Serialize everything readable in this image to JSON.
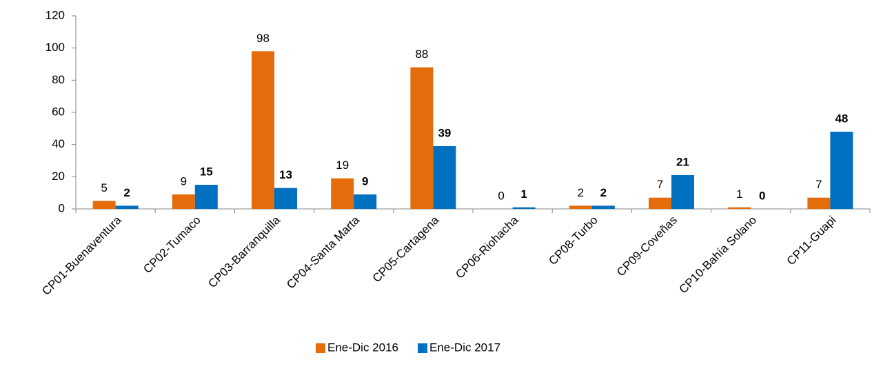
{
  "chart_data": {
    "type": "bar",
    "categories": [
      "CP01-Buenaventura",
      "CP02-Tumaco",
      "CP03-Barranquilla",
      "CP04-Santa Marta",
      "CP05-Cartagena",
      "CP06-Riohacha",
      "CP08-Turbo",
      "CP09-Coveñas",
      "CP10-Bahía Solano",
      "CP11-Guapi"
    ],
    "series": [
      {
        "name": "Ene-Dic 2016",
        "color": "#e46c0a",
        "values": [
          5,
          9,
          98,
          19,
          88,
          0,
          2,
          7,
          1,
          7
        ]
      },
      {
        "name": "Ene-Dic 2017",
        "color": "#0070c0",
        "values": [
          2,
          15,
          13,
          9,
          39,
          1,
          2,
          21,
          0,
          48
        ]
      }
    ],
    "ylim": [
      0,
      120
    ],
    "yticks": [
      0,
      20,
      40,
      60,
      80,
      100,
      120
    ],
    "grid": false,
    "legend": "bottom"
  }
}
